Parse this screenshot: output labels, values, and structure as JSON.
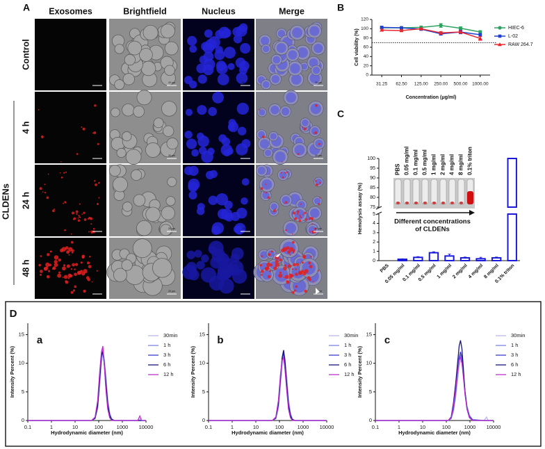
{
  "panel_a": {
    "label": "A",
    "columns": [
      "Exosomes",
      "Brightfield",
      "Nucleus",
      "Merge"
    ],
    "rows": [
      "Control",
      "4 h",
      "24 h",
      "48 h"
    ],
    "group_label": "CLDENs",
    "scale_bar": "20 μm"
  },
  "panel_d": {
    "label": "D"
  },
  "chart_data": [
    {
      "type": "line",
      "panel_label": "B",
      "ylabel": "Cell viability (%)",
      "xlabel": "Concentration (μg/ml)",
      "categories": [
        "31.25",
        "62.50",
        "125.00",
        "250.00",
        "500.00",
        "1000.00"
      ],
      "ylim": [
        0,
        120
      ],
      "yticks": [
        0,
        20,
        40,
        60,
        80,
        100,
        120
      ],
      "reference_line": 70,
      "series": [
        {
          "name": "HIEC-6",
          "color": "#2ca25f",
          "marker": "circle",
          "values": [
            102,
            102,
            103,
            107,
            101,
            93
          ],
          "errors": [
            2,
            2,
            3,
            4,
            3,
            3
          ]
        },
        {
          "name": "L-02",
          "color": "#1f3fd0",
          "marker": "square",
          "values": [
            103,
            102,
            99,
            89,
            93,
            87
          ],
          "errors": [
            2,
            2,
            2,
            3,
            4,
            3
          ]
        },
        {
          "name": "RAW 264.7",
          "color": "#e8262d",
          "marker": "triangle",
          "values": [
            97,
            96,
            100,
            91,
            93,
            79
          ],
          "errors": [
            2,
            2,
            2,
            3,
            3,
            4
          ]
        }
      ]
    },
    {
      "type": "bar",
      "panel_label": "C",
      "ylabel": "Hemolysis assay (%)",
      "categories": [
        "PBS",
        "0.05 mg/ml",
        "0.1 mg/ml",
        "0.5 mg/ml",
        "1 mg/ml",
        "2 mg/ml",
        "4 mg/ml",
        "8 mg/ml",
        "0.1% triton"
      ],
      "values": [
        0,
        0.15,
        0.35,
        0.85,
        0.5,
        0.3,
        0.2,
        0.3,
        100
      ],
      "errors": [
        0,
        0.05,
        0.08,
        0.1,
        0.2,
        0.08,
        0.15,
        0.08,
        0
      ],
      "color": "#1a1adb",
      "ylim": [
        0,
        100
      ],
      "ybreak": [
        5,
        75
      ],
      "yticks": [
        0,
        1,
        2,
        3,
        4,
        5,
        75,
        80,
        85,
        90,
        95,
        100
      ],
      "annotation": [
        "Different concentrations",
        "of CLDENs"
      ]
    },
    {
      "type": "line",
      "subplot_label": "a",
      "xscale": "log",
      "xlabel": "Hydrodynamic diameter (nm)",
      "ylabel": "Intensity Percent (%)",
      "xlim": [
        0.1,
        10000
      ],
      "xticks": [
        0.1,
        1,
        10,
        100,
        1000,
        10000
      ],
      "ylim": [
        0,
        17
      ],
      "yticks": [
        0,
        5,
        10,
        15
      ],
      "x": [
        50,
        70,
        90,
        110,
        130,
        150,
        170,
        200,
        240,
        290,
        350,
        450,
        4500,
        5500,
        6500
      ],
      "series": [
        {
          "name": "30min",
          "color": "#b8b8f0",
          "values": [
            0,
            0.3,
            2,
            6,
            10,
            12,
            11,
            8,
            4,
            1.5,
            0.4,
            0,
            0,
            0.3,
            0
          ]
        },
        {
          "name": "1 h",
          "color": "#8080e8",
          "values": [
            0,
            0.5,
            3,
            8,
            11.5,
            12.5,
            10,
            6,
            2.5,
            0.8,
            0.1,
            0,
            0,
            0,
            0
          ]
        },
        {
          "name": "3 h",
          "color": "#3a3ad0",
          "values": [
            0,
            0.4,
            2.5,
            7,
            11,
            12,
            10.5,
            7,
            3,
            1,
            0.2,
            0,
            0,
            0,
            0
          ]
        },
        {
          "name": "6 h",
          "color": "#14147a",
          "values": [
            0,
            0.4,
            2.5,
            7.5,
            11.5,
            12,
            10,
            6.5,
            2.8,
            0.9,
            0.2,
            0,
            0,
            0,
            0
          ]
        },
        {
          "name": "12 h",
          "color": "#c030d0",
          "values": [
            0,
            0.6,
            3.5,
            8.5,
            12,
            13,
            10,
            5.5,
            2,
            0.5,
            0,
            0,
            0,
            0.8,
            0
          ]
        }
      ]
    },
    {
      "type": "line",
      "subplot_label": "b",
      "xscale": "log",
      "xlabel": "Hydrodynamic diameter (nm)",
      "ylabel": "Intensity Percent (%)",
      "xlim": [
        0.1,
        10000
      ],
      "xticks": [
        0.1,
        1,
        10,
        100,
        1000,
        10000
      ],
      "ylim": [
        0,
        17
      ],
      "yticks": [
        0,
        5,
        10,
        15
      ],
      "x": [
        50,
        70,
        90,
        110,
        130,
        150,
        170,
        200,
        240,
        290,
        350,
        450
      ],
      "series": [
        {
          "name": "30min",
          "color": "#b8b8f0",
          "values": [
            0,
            0.3,
            2,
            6,
            9.5,
            11.5,
            11,
            8,
            4,
            1.5,
            0.3,
            0
          ]
        },
        {
          "name": "1 h",
          "color": "#8080e8",
          "values": [
            0,
            0.4,
            2.5,
            7,
            10.5,
            12,
            10.5,
            7,
            3,
            1,
            0.2,
            0
          ]
        },
        {
          "name": "3 h",
          "color": "#3a3ad0",
          "values": [
            0,
            0.4,
            2.8,
            7.2,
            10.8,
            11.8,
            10.2,
            6.8,
            3,
            1,
            0.2,
            0
          ]
        },
        {
          "name": "6 h",
          "color": "#14147a",
          "values": [
            0,
            0.5,
            3,
            7.5,
            11,
            12.3,
            10.5,
            6.5,
            2.5,
            0.8,
            0.1,
            0
          ]
        },
        {
          "name": "12 h",
          "color": "#c030d0",
          "values": [
            0,
            0.6,
            3.5,
            8,
            10.5,
            11,
            9,
            5.5,
            2,
            0.5,
            0,
            0
          ]
        }
      ]
    },
    {
      "type": "line",
      "subplot_label": "c",
      "xscale": "log",
      "xlabel": "Hydrodynamic diameter (nm)",
      "ylabel": "Intensity Percent (%)",
      "xlim": [
        0.1,
        10000
      ],
      "xticks": [
        0.1,
        1,
        10,
        100,
        1000,
        10000
      ],
      "ylim": [
        0,
        17
      ],
      "yticks": [
        0,
        5,
        10,
        15
      ],
      "x": [
        120,
        160,
        200,
        250,
        300,
        350,
        400,
        460,
        530,
        620,
        750,
        950,
        1300,
        4000,
        5000,
        6000
      ],
      "series": [
        {
          "name": "30min",
          "color": "#b8b8f0",
          "values": [
            0,
            0.3,
            1.5,
            4,
            7,
            9.5,
            10.5,
            10,
            8,
            5,
            2.5,
            1,
            0.2,
            0,
            0.6,
            0
          ]
        },
        {
          "name": "1 h",
          "color": "#8080e8",
          "values": [
            0,
            0.4,
            2,
            5,
            8,
            10.5,
            11.5,
            10.5,
            8,
            5,
            2.5,
            0.8,
            0.1,
            0,
            0,
            0
          ]
        },
        {
          "name": "3 h",
          "color": "#3a3ad0",
          "values": [
            0,
            0.4,
            2,
            5,
            8.5,
            11,
            12,
            11,
            8,
            5,
            2.2,
            0.7,
            0.1,
            0,
            0,
            0
          ]
        },
        {
          "name": "6 h",
          "color": "#14147a",
          "values": [
            0,
            0.6,
            3,
            6.5,
            10,
            13,
            14,
            12.5,
            9,
            5,
            2,
            0.5,
            0,
            0,
            0,
            0
          ]
        },
        {
          "name": "12 h",
          "color": "#c030d0",
          "values": [
            0,
            0.5,
            2.5,
            5.5,
            8.5,
            10.5,
            11,
            10,
            7.5,
            4.5,
            2,
            0.5,
            0,
            0,
            0,
            0
          ]
        }
      ]
    }
  ]
}
